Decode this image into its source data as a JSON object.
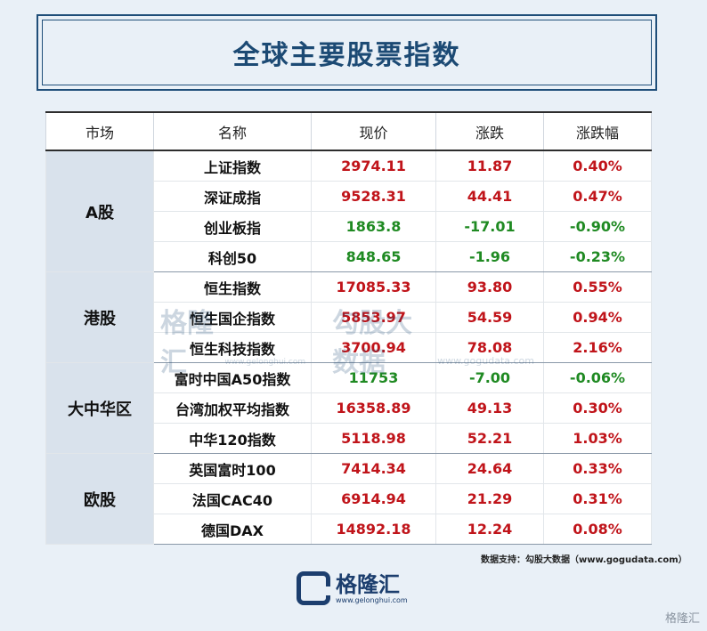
{
  "title": "全球主要股票指数",
  "headers": [
    "市场",
    "名称",
    "现价",
    "涨跌",
    "涨跌幅"
  ],
  "groups": [
    {
      "market": "A股",
      "rows": [
        {
          "name": "上证指数",
          "price": "2974.11",
          "change": "11.87",
          "pct": "0.40%",
          "up": true
        },
        {
          "name": "深证成指",
          "price": "9528.31",
          "change": "44.41",
          "pct": "0.47%",
          "up": true
        },
        {
          "name": "创业板指",
          "price": "1863.8",
          "change": "-17.01",
          "pct": "-0.90%",
          "up": false
        },
        {
          "name": "科创50",
          "price": "848.65",
          "change": "-1.96",
          "pct": "-0.23%",
          "up": false
        }
      ]
    },
    {
      "market": "港股",
      "rows": [
        {
          "name": "恒生指数",
          "price": "17085.33",
          "change": "93.80",
          "pct": "0.55%",
          "up": true
        },
        {
          "name": "恒生国企指数",
          "price": "5853.97",
          "change": "54.59",
          "pct": "0.94%",
          "up": true
        },
        {
          "name": "恒生科技指数",
          "price": "3700.94",
          "change": "78.08",
          "pct": "2.16%",
          "up": true
        }
      ]
    },
    {
      "market": "大中华区",
      "rows": [
        {
          "name": "富时中国A50指数",
          "price": "11753",
          "change": "-7.00",
          "pct": "-0.06%",
          "up": false
        },
        {
          "name": "台湾加权平均指数",
          "price": "16358.89",
          "change": "49.13",
          "pct": "0.30%",
          "up": true
        },
        {
          "name": "中华120指数",
          "price": "5118.98",
          "change": "52.21",
          "pct": "1.03%",
          "up": true
        }
      ]
    },
    {
      "market": "欧股",
      "rows": [
        {
          "name": "英国富时100",
          "price": "7414.34",
          "change": "24.64",
          "pct": "0.33%",
          "up": true
        },
        {
          "name": "法国CAC40",
          "price": "6914.94",
          "change": "21.29",
          "pct": "0.31%",
          "up": true
        },
        {
          "name": "德国DAX",
          "price": "14892.18",
          "change": "12.24",
          "pct": "0.08%",
          "up": true
        }
      ]
    }
  ],
  "watermark": {
    "brand": "格隆汇",
    "brand_url": "www.gelonghui.com",
    "partner": "勾股大数据",
    "partner_url": "www.gogudata.com"
  },
  "source": "数据支持：勾股大数据（www.gogudata.com）",
  "footer_logo": {
    "cn": "格隆汇",
    "en": "www.gelonghui.com"
  },
  "corner_mark": "格隆汇",
  "colors": {
    "up": "#c0141a",
    "down": "#1f8a22",
    "brand": "#1c4a74"
  }
}
